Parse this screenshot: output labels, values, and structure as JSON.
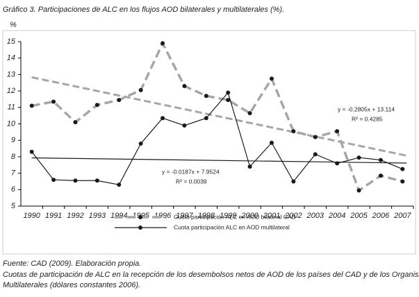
{
  "chart_data": {
    "type": "line",
    "title": "Gráfico 3. Participaciones de ALC en los flujos AOD bilaterales y multilaterales (%).",
    "y_label": "%",
    "categories": [
      "1990",
      "1991",
      "1992",
      "1993",
      "1994",
      "1995",
      "1996",
      "1997",
      "1998",
      "1999",
      "2000",
      "2001",
      "2002",
      "2003",
      "2004",
      "2005",
      "2006",
      "2007"
    ],
    "series": [
      {
        "name": "Cuota participación ALC en AOD bilateral CAD",
        "color": "#a6a6a6",
        "dashed": true,
        "values": [
          11.1,
          11.35,
          10.1,
          11.15,
          11.45,
          12.05,
          14.9,
          12.3,
          11.7,
          11.45,
          10.65,
          12.75,
          9.55,
          9.2,
          9.55,
          5.95,
          6.85,
          6.5
        ]
      },
      {
        "name": "Cuota participación ALC en AOD multilateral",
        "color": "#1a1a1a",
        "dashed": false,
        "values": [
          8.3,
          6.6,
          6.55,
          6.55,
          6.3,
          8.8,
          10.35,
          9.9,
          10.35,
          11.9,
          7.4,
          8.85,
          6.5,
          8.15,
          7.6,
          7.95,
          7.8,
          7.25
        ]
      }
    ],
    "trendlines": [
      {
        "equation": "y = -0.2805x + 13.114",
        "r2": "R² = 0.4285",
        "slope": -0.2805,
        "intercept": 13.114
      },
      {
        "equation": "y = -0.0187x + 7.9524",
        "r2": "R² = 0.0039",
        "slope": -0.0187,
        "intercept": 7.9524
      }
    ],
    "ylim": [
      5,
      15
    ],
    "yticks": [
      5,
      6,
      7,
      8,
      9,
      10,
      11,
      12,
      13,
      14,
      15
    ],
    "notes": [
      "Fuente: CAD (2009). Elaboración propia.",
      "Cuotas de participación de ALC en la recepción de los desembolsos netos de AOD de los países del CAD y de los Organismos",
      "Multilaterales (dólares constantes 2006)."
    ]
  }
}
